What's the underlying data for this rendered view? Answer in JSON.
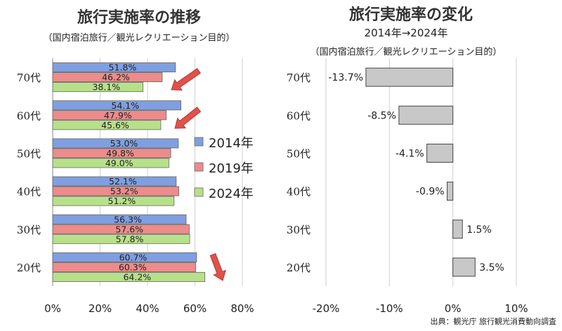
{
  "source": "出典：観光庁 旅行観光消費動向調査",
  "colors": {
    "s2014": "#7f9fe0",
    "s2019": "#ec8c8c",
    "s2024": "#b8e08a",
    "change_bar": "#c8c8c8",
    "arrow": "#e0524a",
    "grid": "#cfcfcf"
  },
  "chart_data": [
    {
      "type": "bar",
      "orientation": "horizontal",
      "title": "旅行実施率の推移",
      "subtitle": "（国内宿泊旅行／観光レクリエーション目的）",
      "categories": [
        "70代",
        "60代",
        "50代",
        "40代",
        "30代",
        "20代"
      ],
      "series": [
        {
          "name": "2014年",
          "values": [
            51.8,
            54.1,
            53.0,
            52.1,
            56.3,
            60.7
          ]
        },
        {
          "name": "2019年",
          "values": [
            46.2,
            47.9,
            49.8,
            53.2,
            57.6,
            60.3
          ]
        },
        {
          "name": "2024年",
          "values": [
            38.1,
            45.6,
            49.0,
            51.2,
            57.8,
            64.2
          ]
        }
      ],
      "data_labels": [
        [
          "51.8%",
          "46.2%",
          "38.1%"
        ],
        [
          "54.1%",
          "47.9%",
          "45.6%"
        ],
        [
          "53.0%",
          "49.8%",
          "49.0%"
        ],
        [
          "52.1%",
          "53.2%",
          "51.2%"
        ],
        [
          "56.3%",
          "57.6%",
          "57.8%"
        ],
        [
          "60.7%",
          "60.3%",
          "64.2%"
        ]
      ],
      "xlim": [
        0,
        80
      ],
      "xticks": [
        0,
        20,
        40,
        60,
        80
      ],
      "xtick_labels": [
        "0%",
        "20%",
        "40%",
        "60%",
        "80%"
      ],
      "legend_position": "right",
      "grid": true,
      "annotations": "red arrows pointing down next to 70代, 60代 (decrease) and 20代 (increase)"
    },
    {
      "type": "bar",
      "orientation": "horizontal",
      "title": "旅行実施率の変化",
      "subtitle": "2014年→2024年",
      "subtitle2": "（国内宿泊旅行／観光レクリエーション目的）",
      "categories": [
        "70代",
        "60代",
        "50代",
        "40代",
        "30代",
        "20代"
      ],
      "values": [
        -13.7,
        -8.5,
        -4.1,
        -0.9,
        1.5,
        3.5
      ],
      "data_labels": [
        "-13.7%",
        "-8.5%",
        "-4.1%",
        "-0.9%",
        "1.5%",
        "3.5%"
      ],
      "xlim": [
        -20,
        10
      ],
      "xticks": [
        -20,
        -10,
        0,
        10
      ],
      "xtick_labels": [
        "-20%",
        "-10%",
        "0%",
        "10%"
      ],
      "grid": true
    }
  ]
}
